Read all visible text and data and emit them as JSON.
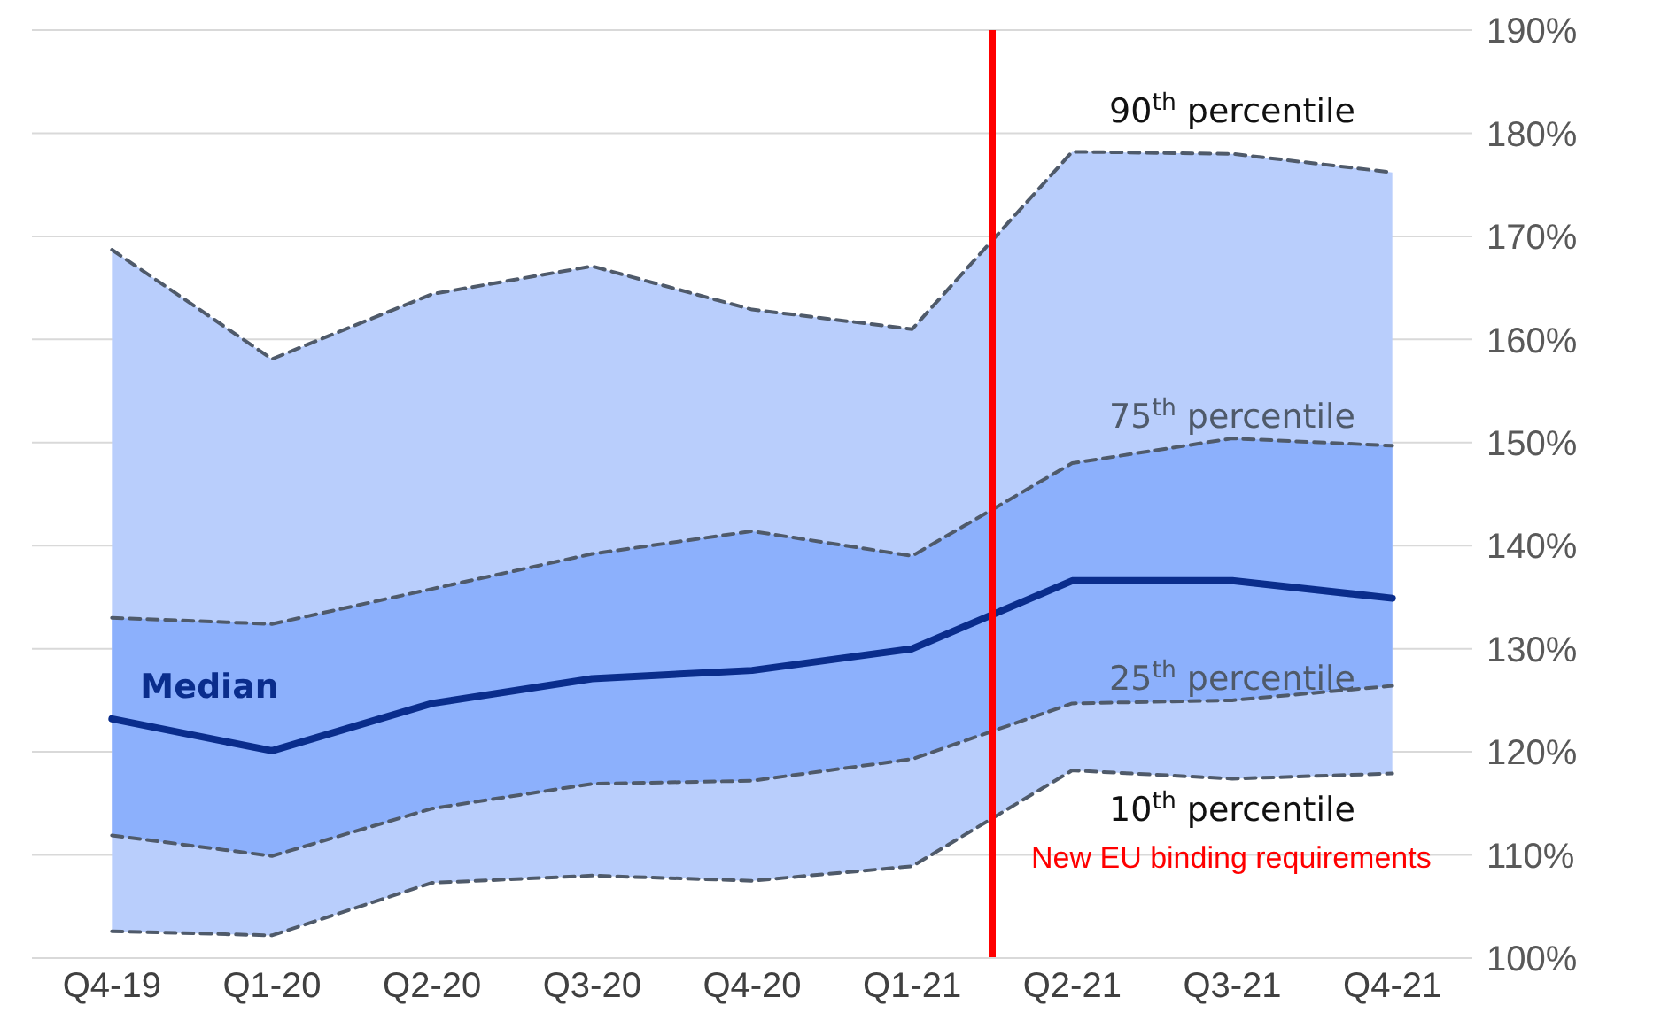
{
  "chart_data": {
    "type": "line",
    "categories": [
      "Q4-19",
      "Q1-20",
      "Q2-20",
      "Q3-20",
      "Q4-20",
      "Q1-21",
      "Q2-21",
      "Q3-21",
      "Q4-21"
    ],
    "series": [
      {
        "name": "90$^{th}$ percentile",
        "color": "#4f5a6a",
        "line_style": "dashed",
        "values": [
          168.7,
          158.1,
          164.4,
          167.1,
          162.9,
          161.0,
          178.2,
          178.0,
          176.2
        ],
        "lower": [
          102.6,
          102.2,
          107.3,
          108.0,
          107.5,
          108.9,
          118.2,
          117.4,
          117.9
        ],
        "upper": [
          168.7,
          158.1,
          164.4,
          167.1,
          162.9,
          161.0,
          178.2,
          178.0,
          176.2
        ]
      },
      {
        "name": "75$^{th}$ percentile",
        "color": "#4f5a6a",
        "line_style": "dashed",
        "values": [
          133.0,
          132.4,
          135.8,
          139.2,
          141.4,
          139.0,
          148.0,
          150.4,
          149.7
        ]
      },
      {
        "name": "Median",
        "color": "#0a2d8c",
        "line_style": "solid",
        "values": [
          123.2,
          120.1,
          124.7,
          127.1,
          127.9,
          130.0,
          136.6,
          136.6,
          134.9
        ],
        "lower": [
          111.9,
          109.9,
          114.5,
          116.9,
          117.2,
          119.3,
          124.7,
          125.0,
          126.4
        ],
        "upper": [
          133.0,
          132.4,
          135.8,
          139.2,
          141.4,
          139.0,
          148.0,
          150.4,
          149.7
        ]
      },
      {
        "name": "25$^{th}$ percentile",
        "color": "#4f5a6a",
        "line_style": "dashed",
        "values": [
          111.9,
          109.9,
          114.5,
          116.9,
          117.2,
          119.3,
          124.7,
          125.0,
          126.4
        ]
      },
      {
        "name": "10$^{th}$ percentile",
        "color": "#4f5a6a",
        "line_style": "dashed",
        "values": [
          102.6,
          102.2,
          107.3,
          108.0,
          107.5,
          108.9,
          118.2,
          117.4,
          117.9
        ]
      }
    ],
    "ylim": [
      100,
      190
    ],
    "yticks": [
      {
        "value": 100,
        "label": "100%"
      },
      {
        "value": 110,
        "label": "110%"
      },
      {
        "value": 120,
        "label": "120%"
      },
      {
        "value": 130,
        "label": "130%"
      },
      {
        "value": 140,
        "label": "140%"
      },
      {
        "value": 150,
        "label": "150%"
      },
      {
        "value": 160,
        "label": "160%"
      },
      {
        "value": 170,
        "label": "170%"
      },
      {
        "value": 180,
        "label": "180%"
      },
      {
        "value": 190,
        "label": "190%"
      }
    ],
    "grid": "y",
    "legend": false,
    "marker": "none",
    "ref_lines": [
      {
        "axis": "x",
        "value": "Q2-21",
        "label": "New EU binding requirements",
        "color": "#ff0000"
      }
    ]
  }
}
